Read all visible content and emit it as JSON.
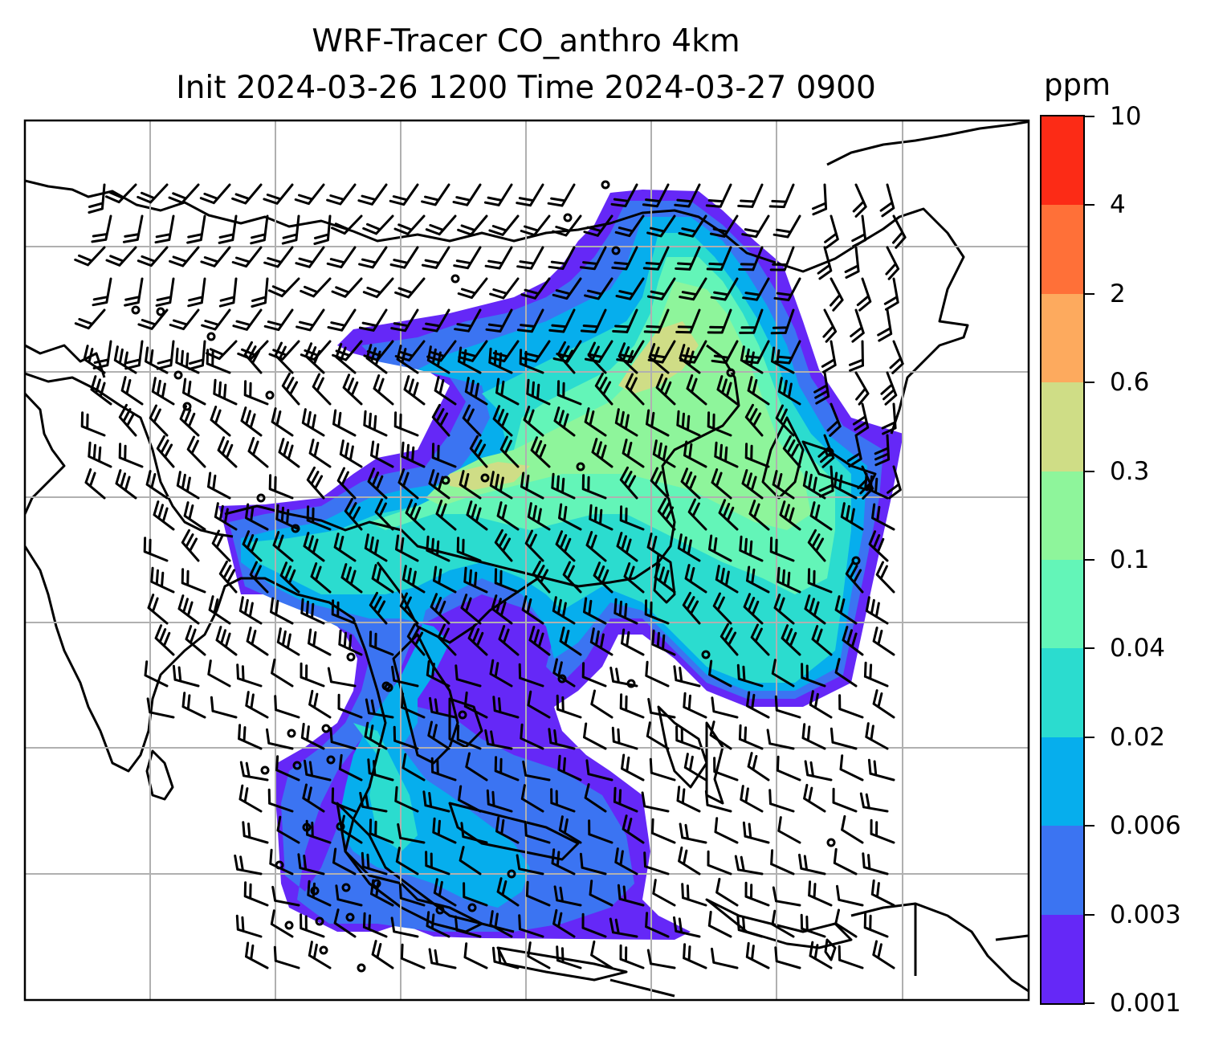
{
  "title": {
    "line1": "WRF-Tracer CO_anthro 4km",
    "line2": "Init 2024-03-26 1200 Time 2024-03-27 0900"
  },
  "colorbar": {
    "unit": "ppm",
    "labels": [
      "0.001",
      "0.003",
      "0.006",
      "0.02",
      "0.04",
      "0.1",
      "0.3",
      "0.6",
      "2",
      "4",
      "10"
    ],
    "colors": [
      "#6528f7",
      "#3b74f2",
      "#06aeed",
      "#2bdccf",
      "#63f5b8",
      "#8ef59b",
      "#cfdd86",
      "#fdaa5e",
      "#ff7038",
      "#fc2b16"
    ]
  },
  "map": {
    "gridlines": true,
    "field_colors": {
      "c1": "#6528f7",
      "c2": "#3b74f2",
      "c3": "#06aeed",
      "c4": "#2bdccf",
      "c5": "#63f5b8",
      "c6": "#8ef59b",
      "c7": "#cfdd86"
    }
  }
}
